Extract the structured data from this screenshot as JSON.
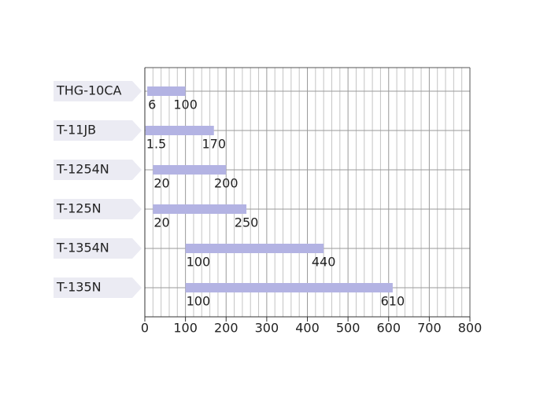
{
  "chart_data": {
    "type": "range-bar",
    "categories": [
      "THG-10CA",
      "T-11JB",
      "T-1254N",
      "T-125N",
      "T-1354N",
      "T-135N"
    ],
    "low": [
      6,
      1.5,
      20,
      20,
      100,
      100
    ],
    "high": [
      100,
      170,
      200,
      250,
      440,
      610
    ],
    "color": "#b3b3e3",
    "xlim": [
      0,
      800
    ],
    "xticks": [
      0,
      100,
      200,
      300,
      400,
      500,
      600,
      700,
      800
    ],
    "minor_xticks": [
      20,
      40,
      60,
      80,
      120,
      140,
      160,
      180,
      220,
      240,
      260,
      280,
      320,
      340,
      360,
      380,
      420,
      440,
      460,
      480,
      520,
      540,
      560,
      580,
      620,
      640,
      660,
      680,
      720,
      740,
      760,
      780
    ],
    "grid": true
  }
}
